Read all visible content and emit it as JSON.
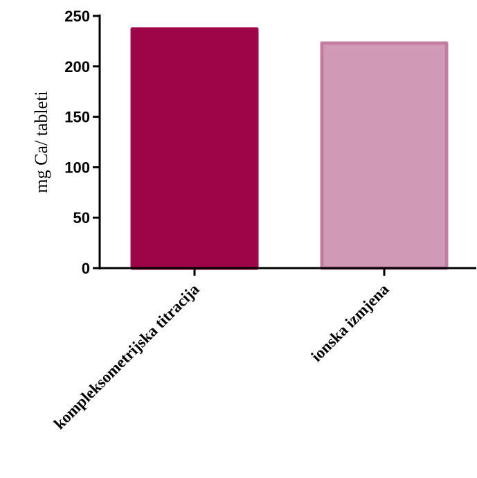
{
  "chart_data": {
    "type": "bar",
    "title": "",
    "xlabel": "",
    "ylabel": "mg Ca/ tableti",
    "categories": [
      "kompleksometrijska titracija",
      "ionska izmjena"
    ],
    "values": [
      237,
      223
    ],
    "ylim": [
      0,
      250
    ],
    "yticks": [
      0,
      50,
      100,
      150,
      200,
      250
    ],
    "grid": false,
    "legend": "none",
    "colors": {
      "bar_fill": [
        "#9e0548",
        "#d09ab6"
      ],
      "bar_edge": [
        "#a0064a",
        "#c27da1"
      ],
      "axis": "#000000"
    }
  }
}
